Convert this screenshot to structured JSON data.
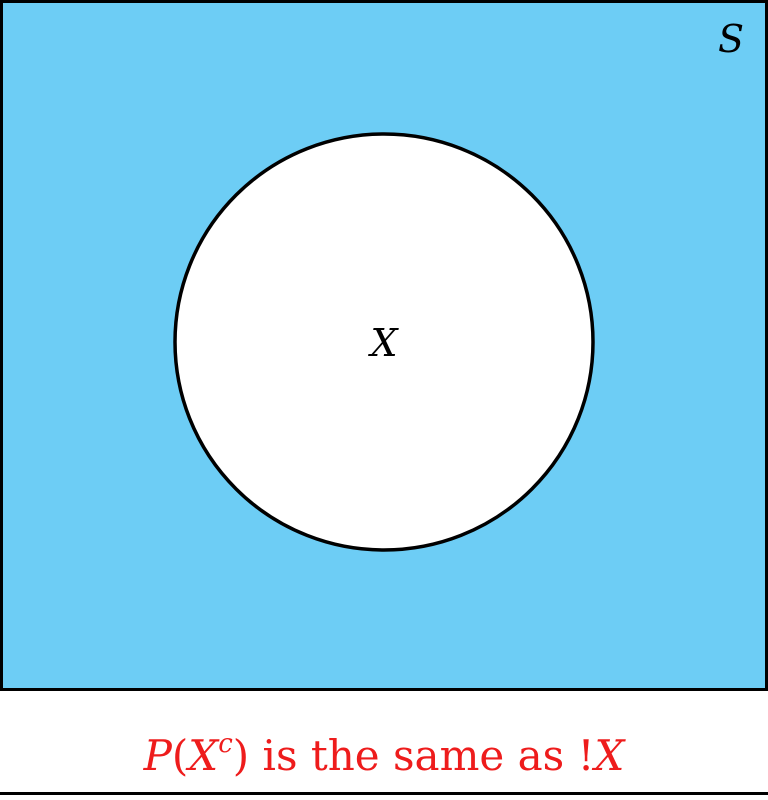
{
  "diagram": {
    "universe_label": "S",
    "set_label": "X",
    "fill_color": "#6dcdf5",
    "set_fill_color": "#ffffff",
    "stroke_color": "#000000"
  },
  "caption": {
    "prob_symbol": "P",
    "open_paren": "(",
    "set_symbol": "X",
    "superscript": "c",
    "close_paren": ")",
    "text": " is the same as ",
    "not_symbol": "!",
    "not_set_symbol": "X",
    "color": "#ee1c1c"
  }
}
